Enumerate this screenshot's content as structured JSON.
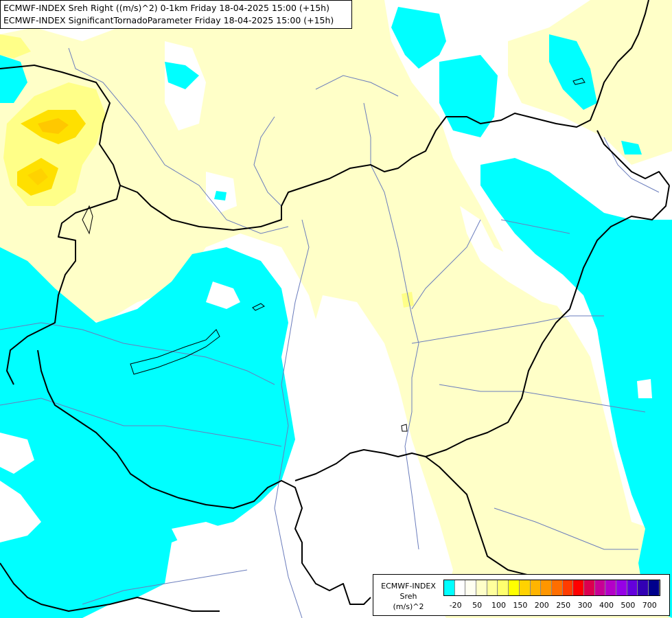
{
  "titles": {
    "line1": "ECMWF-INDEX Sreh Right ((m/s)^2) 0-1km Friday 18-04-2025 15:00 (+15h)",
    "line2": "ECMWF-INDEX SignificantTornadoParameter Friday 18-04-2025 15:00 (+15h)"
  },
  "legend": {
    "title_line1": "ECMWF-INDEX",
    "title_line2": "Sreh",
    "unit": "(m/s)^2",
    "colors": [
      "#00ffff",
      "#ffffff",
      "#fffff0",
      "#ffffc8",
      "#ffff9c",
      "#ffff6e",
      "#ffff00",
      "#ffd200",
      "#ffb400",
      "#ff9600",
      "#ff6e00",
      "#ff3c00",
      "#ff0000",
      "#dc0050",
      "#c80096",
      "#b400c8",
      "#9600e6",
      "#6400dc",
      "#3200b4",
      "#00008c"
    ],
    "labels": [
      "-20",
      "50",
      "100",
      "150",
      "200",
      "250",
      "300",
      "400",
      "500",
      "700"
    ]
  },
  "colors": {
    "cyan": "#00ffff",
    "pale_yellow": "#ffffc8",
    "yellow": "#ffff88",
    "orange": "#ffc800",
    "border": "#000000",
    "river": "#6a7cbc"
  }
}
